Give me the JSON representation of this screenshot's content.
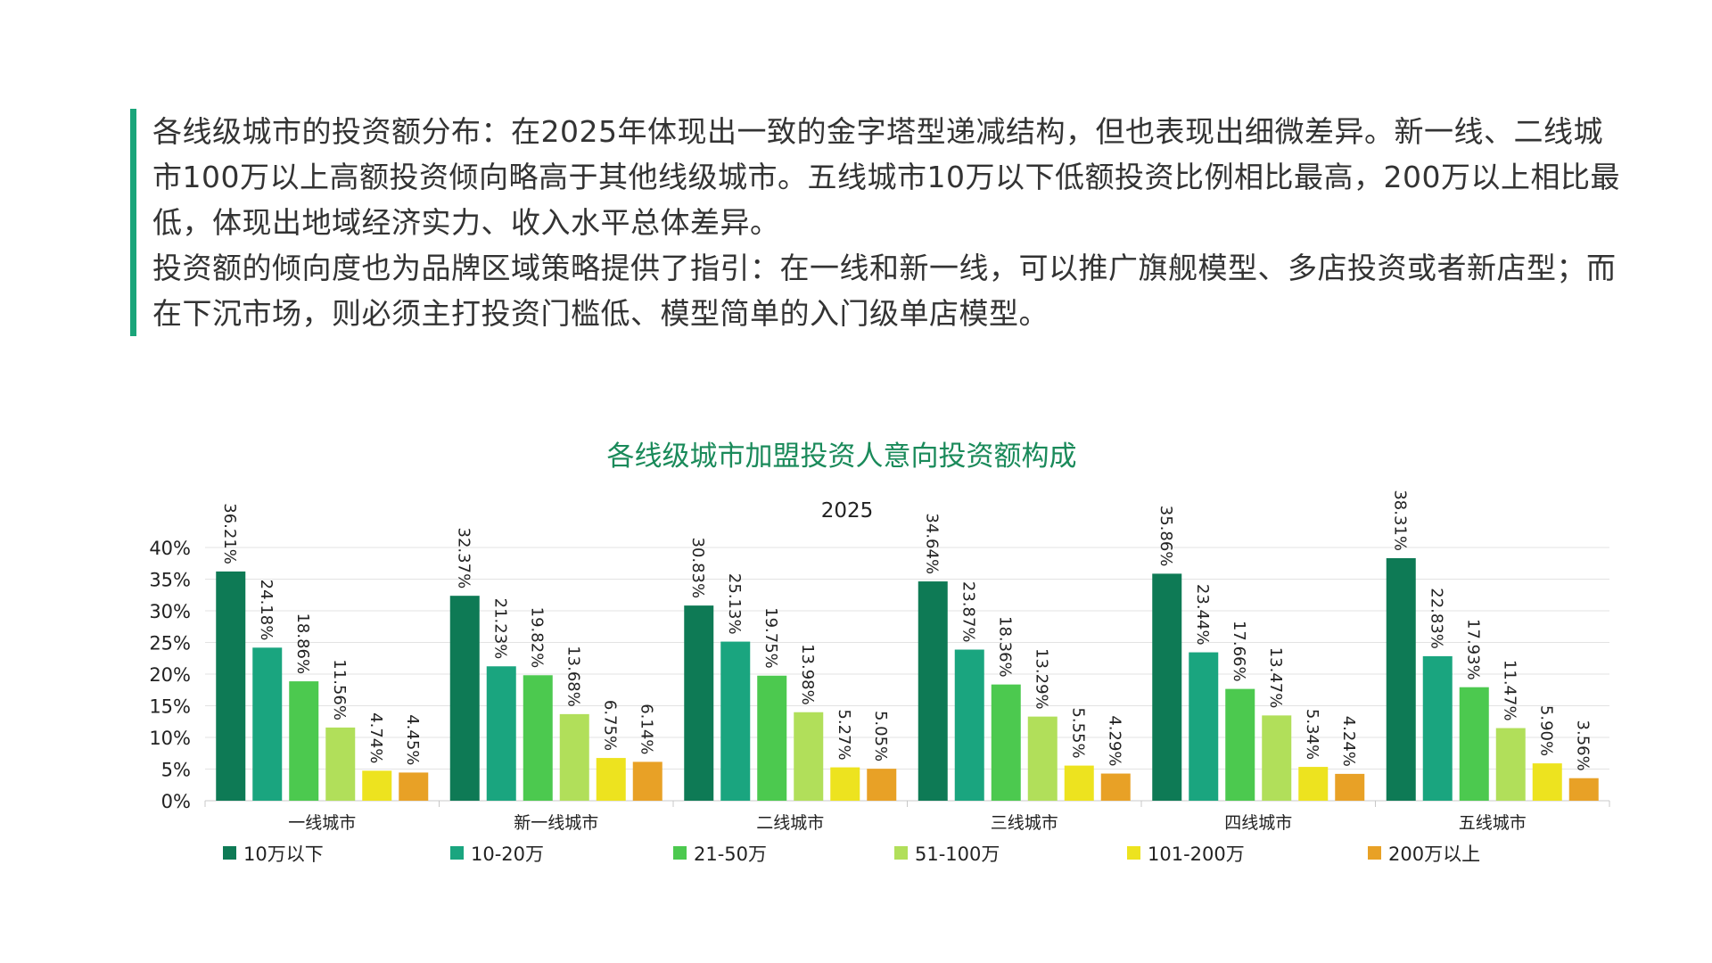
{
  "text": {
    "paragraph1": "各线级城市的投资额分布：在2025年体现出一致的金字塔型递减结构，但也表现出细微差异。新一线、二线城市100万以上高额投资倾向略高于其他线级城市。五线城市10万以下低额投资比例相比最高，200万以上相比最低，体现出地域经济实力、收入水平总体差异。",
    "paragraph2": "投资额的倾向度也为品牌区域策略提供了指引：在一线和新一线，可以推广旗舰模型、多店投资或者新店型；而在下沉市场，则必须主打投资门槛低、模型简单的入门级单店模型。"
  },
  "chart_data": {
    "type": "bar",
    "title": "各线级城市加盟投资人意向投资额构成",
    "subtitle": "2025",
    "categories": [
      "一线城市",
      "新一线城市",
      "二线城市",
      "三线城市",
      "四线城市",
      "五线城市"
    ],
    "series": [
      {
        "name": "10万以下",
        "color": "#0e7a55",
        "values": [
          36.21,
          32.37,
          30.83,
          34.64,
          35.86,
          38.31
        ]
      },
      {
        "name": "10-20万",
        "color": "#1aa57f",
        "values": [
          24.18,
          21.23,
          25.13,
          23.87,
          23.44,
          22.83
        ]
      },
      {
        "name": "21-50万",
        "color": "#4cc94f",
        "values": [
          18.86,
          19.82,
          19.75,
          18.36,
          17.66,
          17.93
        ]
      },
      {
        "name": "51-100万",
        "color": "#b1df5a",
        "values": [
          11.56,
          13.68,
          13.98,
          13.29,
          13.47,
          11.47
        ]
      },
      {
        "name": "101-200万",
        "color": "#ede31f",
        "values": [
          4.74,
          6.75,
          5.27,
          5.55,
          5.34,
          5.9
        ]
      },
      {
        "name": "200万以上",
        "color": "#e8a126",
        "values": [
          4.45,
          6.14,
          5.05,
          4.29,
          4.24,
          3.56
        ]
      }
    ],
    "data_labels": [
      [
        "36.21%",
        "32.37%",
        "30.83%",
        "34.64%",
        "35.86%",
        "38.31%"
      ],
      [
        "24.18%",
        "21.23%",
        "25.13%",
        "23.87%",
        "23.44%",
        "22.83%"
      ],
      [
        "18.86%",
        "19.82%",
        "19.75%",
        "18.36%",
        "17.66%",
        "17.93%"
      ],
      [
        "11.56%",
        "13.68%",
        "13.98%",
        "13.29%",
        "13.47%",
        "11.47%"
      ],
      [
        "4.74%",
        "6.75%",
        "5.27%",
        "5.55%",
        "5.34%",
        "5.90%"
      ],
      [
        "4.45%",
        "6.14%",
        "5.05%",
        "4.29%",
        "4.24%",
        "3.56%"
      ]
    ],
    "y_ticks": [
      "0%",
      "5%",
      "10%",
      "15%",
      "20%",
      "25%",
      "30%",
      "35%",
      "40%"
    ],
    "ylim": [
      0,
      40
    ],
    "grid": true,
    "legend_position": "bottom"
  }
}
